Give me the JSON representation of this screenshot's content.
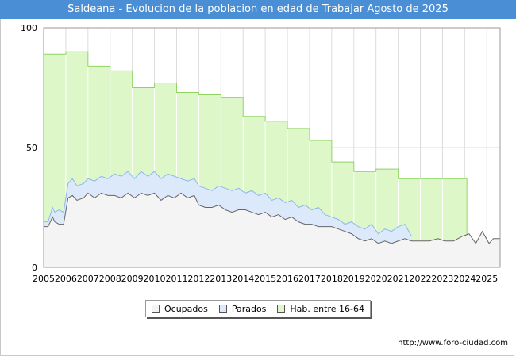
{
  "title": "Saldeana - Evolucion de la poblacion en edad de Trabajar Agosto de 2025",
  "footer": "http://www.foro-ciudad.com",
  "legend": {
    "ocupados": "Ocupados",
    "parados": "Parados",
    "hab": "Hab. entre 16-64"
  },
  "colors": {
    "title_bg": "#4a8fd6",
    "hab_fill": "#ddf7c9",
    "hab_line": "#8fd460",
    "parados_fill": "#dbe9fb",
    "parados_line": "#8db8ee",
    "ocupados_fill": "#f4f4f4",
    "ocupados_line": "#666666"
  },
  "chart_data": {
    "type": "area",
    "xlim": [
      2005,
      2025.6
    ],
    "ylim": [
      0,
      100
    ],
    "yticks": [
      0,
      50,
      100
    ],
    "xticks": [
      "2005",
      "2006",
      "2007",
      "2008",
      "2009",
      "2010",
      "2011",
      "2012",
      "2013",
      "2014",
      "2015",
      "2016",
      "2017",
      "2018",
      "2019",
      "2020",
      "2021",
      "2022",
      "2023",
      "2024",
      "2025"
    ],
    "grid": true,
    "legend_position": "bottom",
    "series": [
      {
        "name": "Hab. entre 16-64",
        "x": [
          2005,
          2006,
          2007,
          2008,
          2009,
          2010,
          2011,
          2012,
          2013,
          2014,
          2015,
          2016,
          2017,
          2018,
          2019,
          2020,
          2021,
          2022,
          2023,
          2024.1
        ],
        "values": [
          89,
          90,
          84,
          82,
          75,
          77,
          73,
          72,
          71,
          63,
          61,
          58,
          53,
          44,
          40,
          41,
          37,
          37,
          37,
          37
        ]
      },
      {
        "name": "Parados",
        "x": [
          2005,
          2005.2,
          2005.4,
          2005.5,
          2005.7,
          2005.9,
          2006.1,
          2006.3,
          2006.5,
          2006.8,
          2007,
          2007.3,
          2007.6,
          2007.9,
          2008.2,
          2008.5,
          2008.8,
          2009.1,
          2009.4,
          2009.7,
          2010,
          2010.3,
          2010.6,
          2010.9,
          2011.2,
          2011.5,
          2011.8,
          2012,
          2012.3,
          2012.6,
          2012.9,
          2013.2,
          2013.5,
          2013.8,
          2014.1,
          2014.4,
          2014.7,
          2015,
          2015.3,
          2015.6,
          2015.9,
          2016.2,
          2016.5,
          2016.8,
          2017.1,
          2017.4,
          2017.7,
          2018,
          2018.3,
          2018.6,
          2018.9,
          2019.2,
          2019.5,
          2019.8,
          2020.1,
          2020.4,
          2020.7,
          2021,
          2021.3,
          2021.6
        ],
        "values": [
          19,
          19,
          25,
          23,
          24,
          23,
          35,
          37,
          34,
          35,
          37,
          36,
          38,
          37,
          39,
          38,
          40,
          37,
          40,
          38,
          40,
          37,
          39,
          38,
          37,
          36,
          37,
          34,
          33,
          32,
          34,
          33,
          32,
          33,
          31,
          32,
          30,
          31,
          28,
          29,
          27,
          28,
          25,
          26,
          24,
          25,
          22,
          21,
          20,
          18,
          19,
          17,
          16,
          18,
          14,
          16,
          15,
          17,
          18,
          13
        ]
      },
      {
        "name": "Ocupados",
        "x": [
          2005,
          2005.2,
          2005.4,
          2005.5,
          2005.7,
          2005.9,
          2006.1,
          2006.3,
          2006.5,
          2006.8,
          2007,
          2007.3,
          2007.6,
          2007.9,
          2008.2,
          2008.5,
          2008.8,
          2009.1,
          2009.4,
          2009.7,
          2010,
          2010.3,
          2010.6,
          2010.9,
          2011.2,
          2011.5,
          2011.8,
          2012,
          2012.3,
          2012.6,
          2012.9,
          2013.2,
          2013.5,
          2013.8,
          2014.1,
          2014.4,
          2014.7,
          2015,
          2015.3,
          2015.6,
          2015.9,
          2016.2,
          2016.5,
          2016.8,
          2017.1,
          2017.4,
          2017.7,
          2018,
          2018.3,
          2018.6,
          2018.9,
          2019.2,
          2019.5,
          2019.8,
          2020.1,
          2020.4,
          2020.7,
          2021,
          2021.3,
          2021.6,
          2022,
          2022.4,
          2022.8,
          2023.1,
          2023.5,
          2023.9,
          2024.2,
          2024.5,
          2024.8,
          2025.1,
          2025.3,
          2025.6
        ],
        "values": [
          17,
          17,
          21,
          19,
          18,
          18,
          29,
          30,
          28,
          29,
          31,
          29,
          31,
          30,
          30,
          29,
          31,
          29,
          31,
          30,
          31,
          28,
          30,
          29,
          31,
          29,
          30,
          26,
          25,
          25,
          26,
          24,
          23,
          24,
          24,
          23,
          22,
          23,
          21,
          22,
          20,
          21,
          19,
          18,
          18,
          17,
          17,
          17,
          16,
          15,
          14,
          12,
          11,
          12,
          10,
          11,
          10,
          11,
          12,
          11,
          11,
          11,
          12,
          11,
          11,
          13,
          14,
          10,
          15,
          10,
          12,
          12
        ]
      }
    ]
  }
}
